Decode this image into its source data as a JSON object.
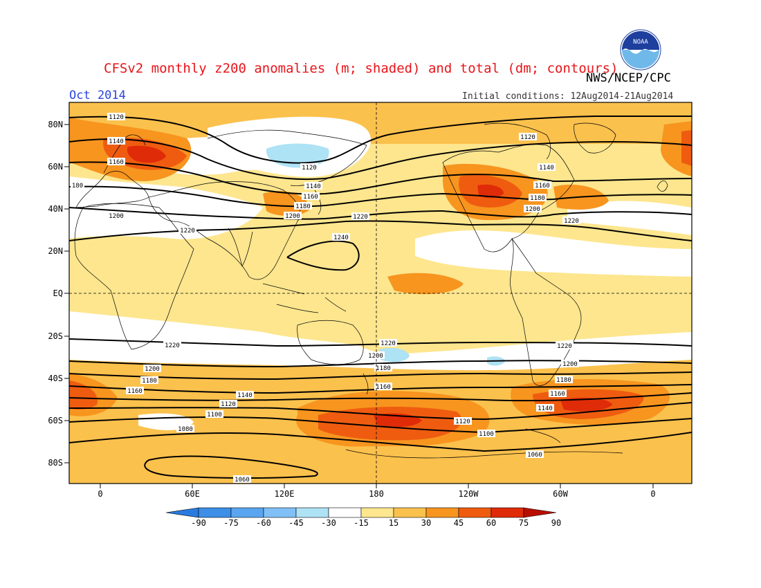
{
  "title": "CFSv2 monthly z200 anomalies (m; shaded) and total (dm; contours)",
  "agency": "NWS/NCEP/CPC",
  "logo_text": "NOAA",
  "month": "Oct 2014",
  "initial_conditions": "Initial conditions: 12Aug2014-21Aug2014",
  "latitude_ticks": [
    "80N",
    "60N",
    "40N",
    "20N",
    "EQ",
    "20S",
    "40S",
    "60S",
    "80S"
  ],
  "longitude_ticks": [
    "0",
    "60E",
    "120E",
    "180",
    "120W",
    "60W",
    "0"
  ],
  "colorbar": {
    "labels": [
      "-90",
      "-75",
      "-60",
      "-45",
      "-30",
      "-15",
      "15",
      "30",
      "45",
      "60",
      "75",
      "90"
    ],
    "colors": [
      "#2a7be0",
      "#3d8fe8",
      "#5aa5f0",
      "#80c0f6",
      "#aee2f5",
      "#ffffff",
      "#fde68e",
      "#fbc14d",
      "#f7951f",
      "#ef5c10",
      "#e02b08",
      "#b80e00"
    ]
  },
  "contour_labels": {
    "c1060": "1060",
    "c1080": "1080",
    "c1100": "1100",
    "c1120": "1120",
    "c1140": "1140",
    "c1160": "1160",
    "c1180": "1180",
    "c1200": "1200",
    "c1220": "1220",
    "c1240": "1240",
    "c180": "180"
  }
}
